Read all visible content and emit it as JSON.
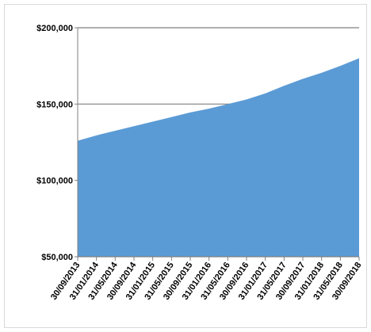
{
  "chart_data": {
    "type": "area",
    "title": "",
    "xlabel": "",
    "ylabel": "",
    "x_tick_labels": [
      "30/09/2013",
      "31/01/2014",
      "31/05/2014",
      "30/09/2014",
      "31/01/2015",
      "31/05/2015",
      "30/09/2015",
      "31/01/2016",
      "31/05/2016",
      "30/09/2016",
      "31/01/2017",
      "31/05/2017",
      "30/09/2017",
      "31/01/2018",
      "31/05/2018",
      "30/09/2018"
    ],
    "y_tick_labels": [
      "$50,000",
      "$100,000",
      "$150,000",
      "$200,000"
    ],
    "y_ticks": [
      50000,
      100000,
      150000,
      200000
    ],
    "ylim": [
      50000,
      200000
    ],
    "grid": "horizontal",
    "legend": "none",
    "series": [
      {
        "color": "#5B9BD5",
        "x": [
          "30/09/2013",
          "31/01/2014",
          "31/05/2014",
          "30/09/2014",
          "31/01/2015",
          "31/05/2015",
          "30/09/2015",
          "31/01/2016",
          "31/05/2016",
          "30/09/2016",
          "31/01/2017",
          "31/05/2017",
          "30/09/2017",
          "31/01/2018",
          "31/05/2018",
          "30/09/2018"
        ],
        "values": [
          126000,
          129500,
          132500,
          135500,
          138500,
          141500,
          144500,
          147000,
          150000,
          153000,
          157000,
          162000,
          166500,
          170500,
          175000,
          180000
        ]
      }
    ]
  }
}
